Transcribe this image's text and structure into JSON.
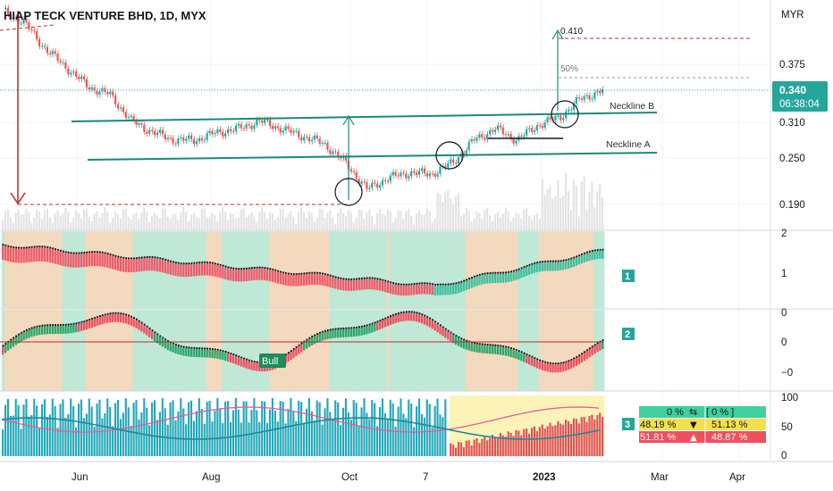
{
  "chart_data": {
    "type": "candlestick",
    "title": "HIAP TECK VENTURE BHD, 1D, MYX",
    "currency": "MYR",
    "price_axis": {
      "ticks": [
        "0.375",
        "0.310",
        "0.250",
        "0.190"
      ],
      "range": [
        0.16,
        0.45
      ]
    },
    "time_axis": {
      "ticks": [
        "Jun",
        "Aug",
        "Oct",
        "7",
        "2023",
        "Mar",
        "Apr"
      ]
    },
    "last_price": {
      "value": "0.340",
      "countdown": "06:38:04"
    },
    "colors": {
      "up": "#26a69a",
      "down": "#ef5350",
      "line": "#1a8a7a",
      "target": "#c62828"
    },
    "price_series": [
      {
        "m": "2022-04",
        "v": 0.445
      },
      {
        "m": "2022-04",
        "v": 0.43
      },
      {
        "m": "2022-05",
        "v": 0.395
      },
      {
        "m": "2022-05",
        "v": 0.37
      },
      {
        "m": "2022-05",
        "v": 0.345
      },
      {
        "m": "2022-06",
        "v": 0.335
      },
      {
        "m": "2022-06",
        "v": 0.3
      },
      {
        "m": "2022-06",
        "v": 0.285
      },
      {
        "m": "2022-07",
        "v": 0.275
      },
      {
        "m": "2022-07",
        "v": 0.275
      },
      {
        "m": "2022-07",
        "v": 0.285
      },
      {
        "m": "2022-08",
        "v": 0.29
      },
      {
        "m": "2022-08",
        "v": 0.3
      },
      {
        "m": "2022-08",
        "v": 0.29
      },
      {
        "m": "2022-09",
        "v": 0.28
      },
      {
        "m": "2022-09",
        "v": 0.27
      },
      {
        "m": "2022-09",
        "v": 0.245
      },
      {
        "m": "2022-10",
        "v": 0.21
      },
      {
        "m": "2022-10",
        "v": 0.225
      },
      {
        "m": "2022-10",
        "v": 0.232
      },
      {
        "m": "2022-11",
        "v": 0.23
      },
      {
        "m": "2022-11",
        "v": 0.245
      },
      {
        "m": "2022-11",
        "v": 0.275
      },
      {
        "m": "2022-12",
        "v": 0.29
      },
      {
        "m": "2022-12",
        "v": 0.275
      },
      {
        "m": "2022-12",
        "v": 0.295
      },
      {
        "m": "2023-01",
        "v": 0.305
      },
      {
        "m": "2023-01",
        "v": 0.33
      },
      {
        "m": "2023-01",
        "v": 0.34
      }
    ],
    "annotations": [
      {
        "text": "Neckline B"
      },
      {
        "text": "Neckline A"
      },
      {
        "text": "0.410"
      },
      {
        "text": "50%"
      }
    ],
    "indicator_1": {
      "label": "1",
      "ticks": [
        "2",
        "1"
      ]
    },
    "indicator_2": {
      "label": "2",
      "ticks": [
        "0",
        "0",
        "−0"
      ],
      "tag": "Bull"
    },
    "indicator_3": {
      "label": "3",
      "ticks": [
        "100",
        "50",
        "0"
      ],
      "rows": [
        {
          "left": "0 %",
          "mid": "⇆",
          "right": "[ 0 % ]"
        },
        {
          "left": "48.19 %",
          "mid": "▼",
          "right": "51.13 %"
        },
        {
          "left": "51.81 %",
          "mid": "▲",
          "right": "48.87 %"
        }
      ]
    }
  }
}
